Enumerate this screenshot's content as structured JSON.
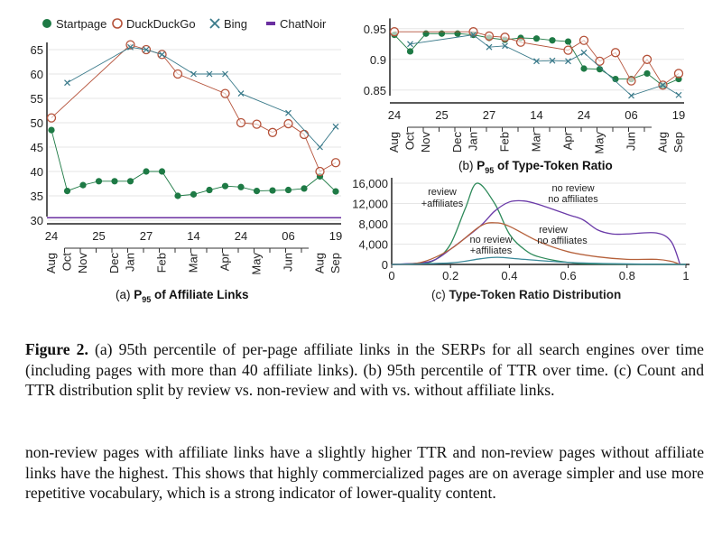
{
  "legend": [
    {
      "name": "Startpage",
      "color": "#1e7a45",
      "marker": "dot"
    },
    {
      "name": "DuckDuckGo",
      "color": "#b5523a",
      "marker": "circle"
    },
    {
      "name": "Bing",
      "color": "#3a7a8a",
      "marker": "cross"
    },
    {
      "name": "ChatNoir",
      "color": "#6a2fa0",
      "marker": "line"
    }
  ],
  "chart_data": [
    {
      "type": "line",
      "title": "(a) P95 of Affiliate Links",
      "title_prefix": "(a) ",
      "title_p": "P",
      "title_sub": "95",
      "title_rest": " of Affiliate Links",
      "ylim": [
        30,
        65
      ],
      "yticks": [
        30,
        35,
        40,
        45,
        50,
        55,
        60,
        65
      ],
      "day_ticks": [
        {
          "i": 0,
          "t": "24"
        },
        {
          "i": 3,
          "t": "25"
        },
        {
          "i": 6,
          "t": "27"
        },
        {
          "i": 9,
          "t": "14"
        },
        {
          "i": 12,
          "t": "24"
        },
        {
          "i": 15,
          "t": "06"
        },
        {
          "i": 18,
          "t": "19"
        }
      ],
      "month_ticks": [
        {
          "i": 0,
          "t": "Aug"
        },
        {
          "i": 1,
          "t": "Oct"
        },
        {
          "i": 2,
          "t": "Nov"
        },
        {
          "i": 4,
          "t": "Dec"
        },
        {
          "i": 5,
          "t": "Jan"
        },
        {
          "i": 7,
          "t": "Feb"
        },
        {
          "i": 9,
          "t": "Mar"
        },
        {
          "i": 11,
          "t": "Apr"
        },
        {
          "i": 13,
          "t": "May"
        },
        {
          "i": 15,
          "t": "Jun"
        },
        {
          "i": 17,
          "t": "Aug"
        },
        {
          "i": 18,
          "t": "Sep"
        }
      ],
      "series": [
        {
          "name": "Startpage",
          "x": [
            0,
            1,
            2,
            3,
            4,
            5,
            6,
            7,
            8,
            9,
            10,
            11,
            12,
            13,
            14,
            15,
            16,
            17,
            18
          ],
          "y": [
            48.5,
            36,
            37.2,
            38,
            38,
            38,
            40,
            40,
            35,
            35.3,
            36.2,
            37,
            36.8,
            36,
            36.1,
            36.2,
            36.5,
            39,
            35.9
          ]
        },
        {
          "name": "DuckDuckGo",
          "x": [
            0,
            5,
            6,
            7,
            8,
            11,
            12,
            13,
            14,
            15,
            16,
            17,
            18
          ],
          "y": [
            51,
            66,
            65,
            64,
            60,
            56,
            50,
            49.7,
            48,
            49.8,
            47.6,
            40,
            41.8
          ]
        },
        {
          "name": "Bing",
          "x": [
            1,
            5,
            6,
            7,
            9,
            10,
            11,
            12,
            15,
            17,
            18
          ],
          "y": [
            58.2,
            65.5,
            65,
            64,
            60,
            60,
            60,
            56,
            52,
            45,
            49.2
          ]
        },
        {
          "name": "ChatNoir",
          "x": [
            0,
            18
          ],
          "y": [
            30.5,
            30.5
          ]
        }
      ]
    },
    {
      "type": "line",
      "title": "(b) P95 of Type-Token Ratio",
      "title_prefix": "(b) ",
      "title_p": "P",
      "title_sub": "95",
      "title_rest": " of Type-Token Ratio",
      "ylim": [
        0.835,
        0.955
      ],
      "yticks": [
        0.85,
        0.9,
        0.95
      ],
      "series": [
        {
          "name": "Startpage",
          "x": [
            0,
            1,
            2,
            3,
            4,
            5,
            6,
            7,
            8,
            9,
            10,
            11,
            12,
            13,
            14,
            15,
            16,
            17,
            18
          ],
          "y": [
            0.94,
            0.913,
            0.942,
            0.942,
            0.942,
            0.94,
            0.935,
            0.932,
            0.935,
            0.934,
            0.931,
            0.929,
            0.885,
            0.884,
            0.868,
            0.868,
            0.877,
            0.857,
            0.868
          ]
        },
        {
          "name": "DuckDuckGo",
          "x": [
            0,
            5,
            6,
            7,
            8,
            11,
            12,
            13,
            14,
            15,
            16,
            17,
            18
          ],
          "y": [
            0.945,
            0.945,
            0.938,
            0.936,
            0.928,
            0.915,
            0.931,
            0.897,
            0.911,
            0.865,
            0.9,
            0.858,
            0.877
          ]
        },
        {
          "name": "Bing",
          "x": [
            1,
            5,
            6,
            7,
            9,
            10,
            11,
            12,
            15,
            17,
            18
          ],
          "y": [
            0.925,
            0.94,
            0.92,
            0.922,
            0.897,
            0.898,
            0.897,
            0.911,
            0.841,
            0.858,
            0.842
          ]
        }
      ]
    },
    {
      "type": "area",
      "title": "(c) Type-Token Ratio Distribution",
      "xlim": [
        0,
        1
      ],
      "ylim": [
        0,
        16000
      ],
      "xticks": [
        "0",
        "0.2",
        "0.4",
        "0.6",
        "0.8",
        "1"
      ],
      "yticks": [
        "0",
        "4,000",
        "8,000",
        "12,000",
        "16,000"
      ],
      "series": [
        {
          "name": "review +affiliates",
          "color": "#2e8a5a",
          "x": [
            0,
            0.1,
            0.15,
            0.2,
            0.25,
            0.29,
            0.35,
            0.4,
            0.45,
            0.5,
            0.6,
            0.7,
            1
          ],
          "y": [
            0,
            200,
            1000,
            4000,
            11000,
            16000,
            12000,
            6000,
            3000,
            1500,
            400,
            100,
            0
          ]
        },
        {
          "name": "no review no affiliates",
          "color": "#6a3aa8",
          "x": [
            0,
            0.1,
            0.15,
            0.2,
            0.3,
            0.35,
            0.4,
            0.45,
            0.5,
            0.6,
            0.65,
            0.7,
            0.75,
            0.8,
            0.9,
            0.95,
            0.98
          ],
          "y": [
            0,
            300,
            1000,
            3000,
            7500,
            10500,
            12300,
            12500,
            11800,
            9800,
            8800,
            6800,
            6000,
            6000,
            6200,
            4500,
            0
          ]
        },
        {
          "name": "review no affiliates",
          "color": "#b5603a",
          "x": [
            0,
            0.1,
            0.2,
            0.3,
            0.35,
            0.4,
            0.5,
            0.6,
            0.7,
            0.8,
            0.9,
            0.95,
            0.98
          ],
          "y": [
            0,
            400,
            3000,
            7500,
            8200,
            7500,
            4500,
            2500,
            1500,
            1000,
            1000,
            600,
            0
          ]
        },
        {
          "name": "no review +affiliates",
          "color": "#3a8a9a",
          "x": [
            0,
            0.2,
            0.3,
            0.36,
            0.45,
            0.6,
            0.8,
            1
          ],
          "y": [
            0,
            300,
            1100,
            1400,
            1000,
            400,
            100,
            0
          ]
        }
      ],
      "labels": [
        {
          "l1": "review",
          "l2": "+affiliates"
        },
        {
          "l1": "no review",
          "l2": "no affiliates"
        },
        {
          "l1": "review",
          "l2": "no affiliates"
        },
        {
          "l1": "no review",
          "l2": "+affiliates"
        }
      ]
    }
  ],
  "caption": {
    "label": "Figure 2.",
    "text": " (a) 95th percentile of per-page affiliate links in the SERPs for all search engines over time (including pages with more than 40 affiliate links). (b) 95th percentile of TTR over time. (c) Count and TTR distribution split by review vs. non-review and with vs. without affiliate links."
  },
  "body_text": "non-review pages with affiliate links have a slightly higher TTR and non-review pages without affiliate links have the highest. This shows that highly commercialized pages are on average simpler and use more repetitive vocabulary, which is a strong indicator of lower-quality content."
}
